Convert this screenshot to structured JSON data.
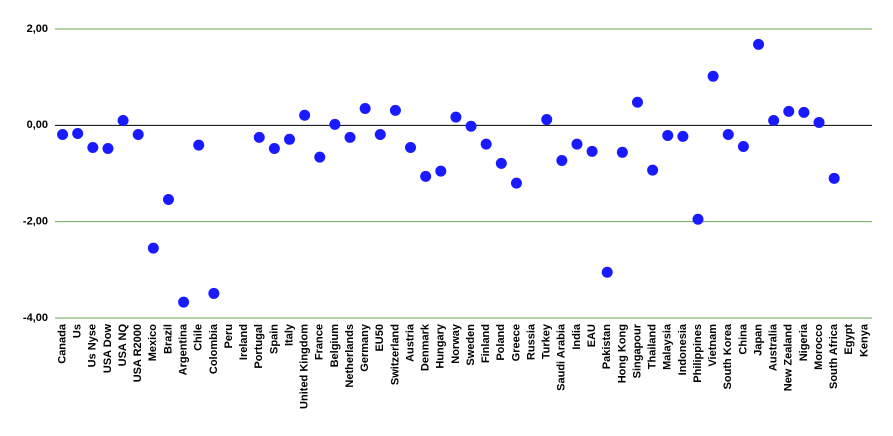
{
  "chart_data": {
    "type": "scatter",
    "categories": [
      "Canada",
      "Us",
      "Us Nyse",
      "USA Dow",
      "USA NQ",
      "USA R2000",
      "Mexico",
      "Brazil",
      "Argentina",
      "Chile",
      "Colombia",
      "Peru",
      "Ireland",
      "Portugal",
      "Spain",
      "Italy",
      "United Kingdom",
      "France",
      "Belgium",
      "Netherlands",
      "Germany",
      "EU50",
      "Switzerland",
      "Austria",
      "Denmark",
      "Hungary",
      "Norway",
      "Sweden",
      "Finland",
      "Poland",
      "Greece",
      "Russia",
      "Turkey",
      "Saudi Arabia",
      "India",
      "EAU",
      "Pakistan",
      "Hong Kong",
      "Singapour",
      "Thailand",
      "Malaysia",
      "Indonesia",
      "Philippines",
      "Vietnam",
      "South Korea",
      "China",
      "Japan",
      "Australia",
      "New Zealand",
      "Nigeria",
      "Morocco",
      "South Africa",
      "Egypt",
      "Kenya"
    ],
    "values": [
      -0.19,
      -0.17,
      -0.46,
      -0.48,
      0.1,
      -0.19,
      -2.55,
      -1.54,
      -3.67,
      -0.41,
      -3.49,
      null,
      null,
      -0.25,
      -0.48,
      -0.29,
      0.21,
      -0.66,
      0.02,
      -0.25,
      0.35,
      -0.19,
      0.31,
      -0.46,
      -1.06,
      -0.95,
      0.17,
      -0.02,
      -0.39,
      -0.79,
      -1.2,
      null,
      0.12,
      -0.73,
      -0.39,
      -0.54,
      -3.05,
      -0.56,
      0.48,
      -0.93,
      -0.21,
      -0.23,
      -1.95,
      1.02,
      -0.19,
      -0.44,
      1.68,
      0.1,
      0.29,
      0.27,
      0.06,
      -1.1,
      null,
      null
    ],
    "color": "#1a1aff",
    "ylim": [
      -4,
      2
    ],
    "yticks": [
      {
        "value": 2,
        "label": "2,00"
      },
      {
        "value": 0,
        "label": "0,00"
      },
      {
        "value": -2,
        "label": "-2,00"
      },
      {
        "value": -4,
        "label": "-4,00"
      }
    ],
    "grid": true
  }
}
